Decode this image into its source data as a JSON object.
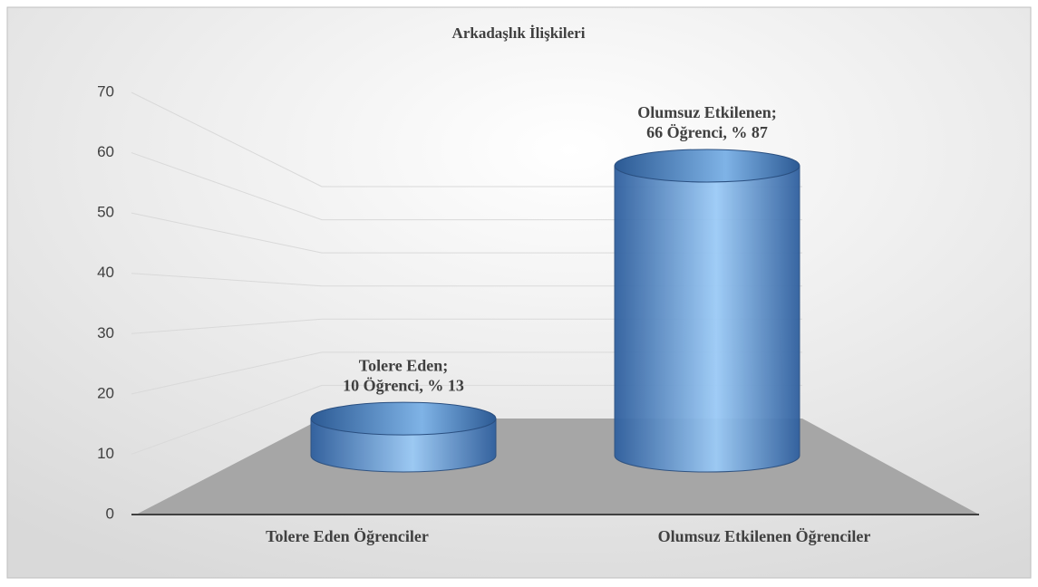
{
  "chart_data": {
    "type": "bar3d",
    "title": "Arkadaşlık İlişkileri",
    "categories": [
      "Tolere Eden Öğrenciler",
      "Olumsuz Etkilenen Öğrenciler"
    ],
    "values": [
      10,
      66
    ],
    "value_labels": [
      [
        "Tolere Eden;",
        "10 Öğrenci, % 13"
      ],
      [
        "Olumsuz Etkilenen;",
        "66 Öğrenci, % 87"
      ]
    ],
    "color": "#4f81bd",
    "ylim": [
      0,
      70
    ],
    "yticks": [
      0,
      10,
      20,
      30,
      40,
      50,
      60,
      70
    ],
    "grid": true
  }
}
